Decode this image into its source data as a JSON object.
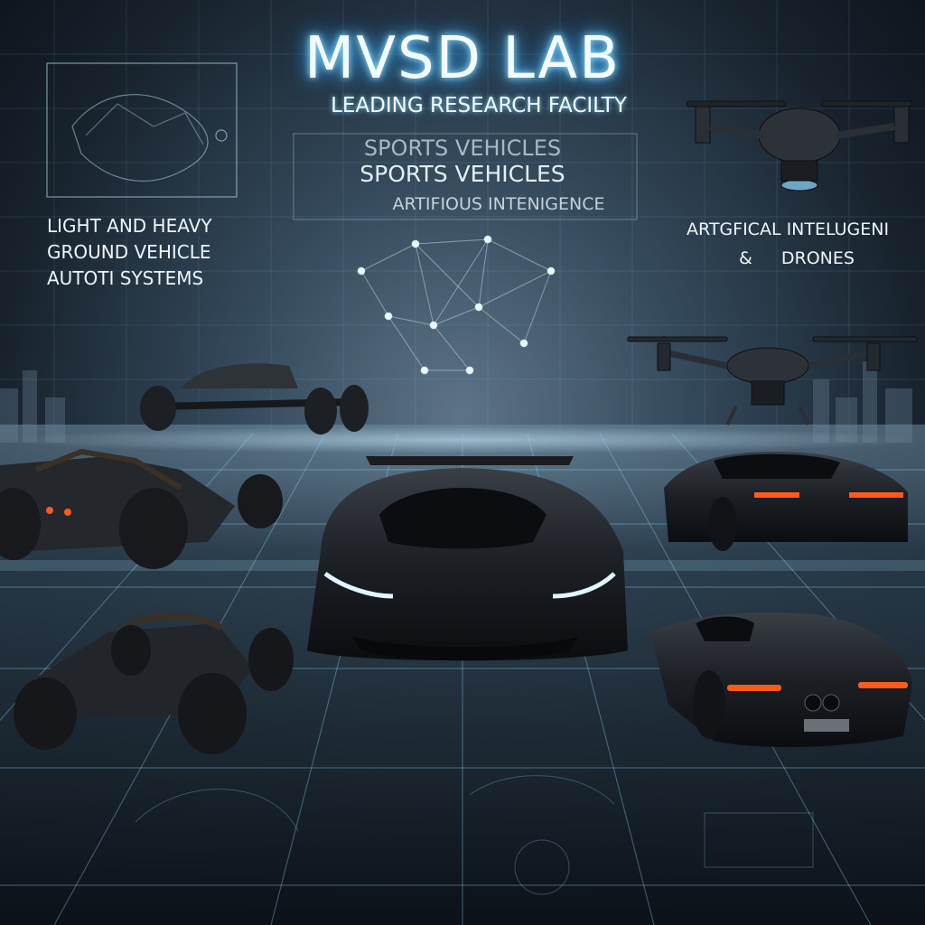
{
  "header": {
    "title": "MVSD LAB",
    "subtitle": "LEADING RESEARCH FACILTY"
  },
  "center_text": {
    "line1": "SPORTS VEHICLES",
    "line2": "SPORTS VEHICLES",
    "line3": "ARTIFIOUS INTENIGENCE"
  },
  "left_text": {
    "line1": "LIGHT AND HEAVY",
    "line2": "GROUND VEHICLE",
    "line3": "AUTOTI SYSTEMS"
  },
  "right_text": {
    "line1": "ARTGFICAL INTELUGENI",
    "line2_symbol": "&",
    "line2_word": "DRONES"
  },
  "colors": {
    "glow": "#48b8ff",
    "grid": "#9fe6ff",
    "vehicle_body": "#1c1f24",
    "headlight": "#dff6ff",
    "taillight": "#ff5a1a"
  }
}
